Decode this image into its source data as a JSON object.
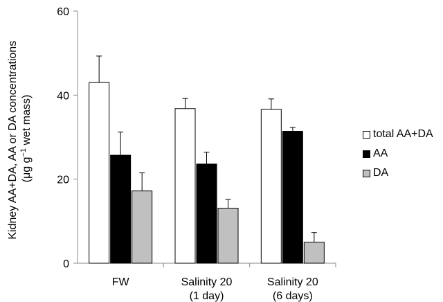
{
  "chart_data": {
    "type": "bar",
    "categories": [
      [
        "FW"
      ],
      [
        "Salinity 20",
        "(1 day)"
      ],
      [
        "Salinity 20",
        "(6 days)"
      ]
    ],
    "ylabel_line1": "Kidney AA+DA, AA or DA concentrations",
    "ylabel_line2_pre": "(μg g",
    "ylabel_line2_sup": "−1",
    "ylabel_line2_post": " wet mass)",
    "ylim": [
      0,
      60
    ],
    "yticks": [
      0,
      20,
      40,
      60
    ],
    "grid": false,
    "legend_position": "right",
    "series": [
      {
        "name": "total AA+DA",
        "color": "#ffffff",
        "values": [
          43.0,
          36.8,
          36.6
        ],
        "errors": [
          6.3,
          2.4,
          2.5
        ]
      },
      {
        "name": "AA",
        "color": "#000000",
        "values": [
          25.7,
          23.6,
          31.4
        ],
        "errors": [
          5.5,
          2.8,
          0.9
        ]
      },
      {
        "name": "DA",
        "color": "#c0c0c0",
        "values": [
          17.2,
          13.1,
          5.0
        ],
        "errors": [
          4.3,
          2.1,
          2.3
        ]
      }
    ]
  }
}
